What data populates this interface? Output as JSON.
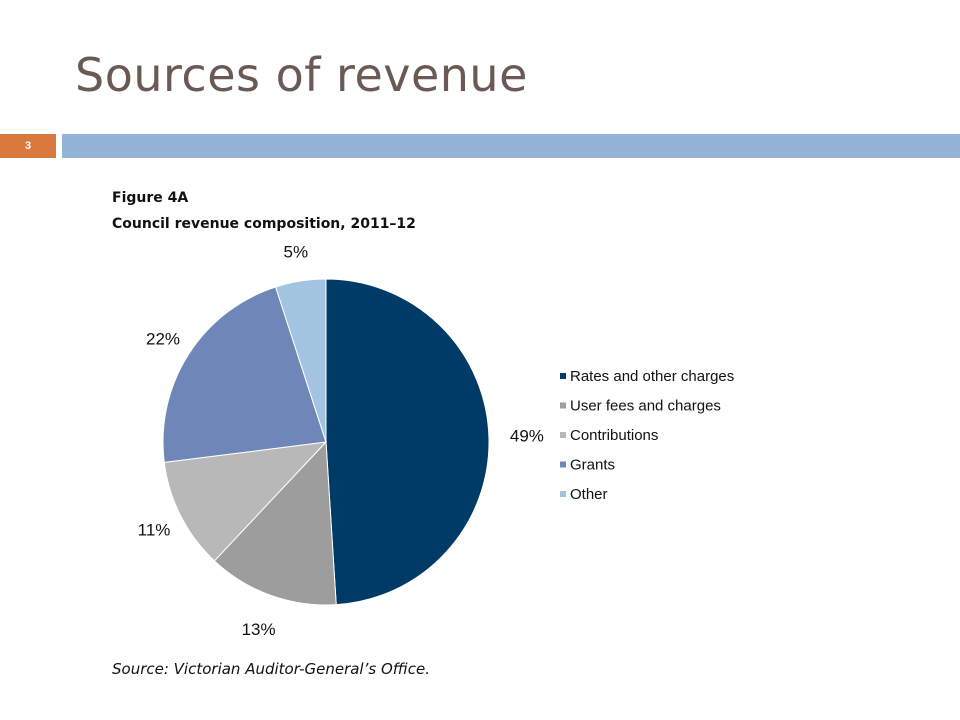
{
  "slide": {
    "title": "Sources of revenue",
    "number": "3",
    "accent_color": "#d9793d",
    "bar_color": "#95b3d7"
  },
  "figure": {
    "label": "Figure 4A",
    "caption": "Council revenue composition, 2011–12",
    "source": "Source: Victorian Auditor-General’s Office."
  },
  "chart_data": {
    "type": "pie",
    "title": "Council revenue composition, 2011–12",
    "legend_position": "right",
    "slices": [
      {
        "name": "Rates and other charges",
        "value": 49,
        "label": "49%",
        "color": "#003a66"
      },
      {
        "name": "User fees and charges",
        "value": 13,
        "label": "13%",
        "color": "#9d9d9d"
      },
      {
        "name": "Contributions",
        "value": 11,
        "label": "11%",
        "color": "#b8b8b8"
      },
      {
        "name": "Grants",
        "value": 22,
        "label": "22%",
        "color": "#6e86b8"
      },
      {
        "name": "Other",
        "value": 5,
        "label": "5%",
        "color": "#a3c4e0"
      }
    ]
  }
}
